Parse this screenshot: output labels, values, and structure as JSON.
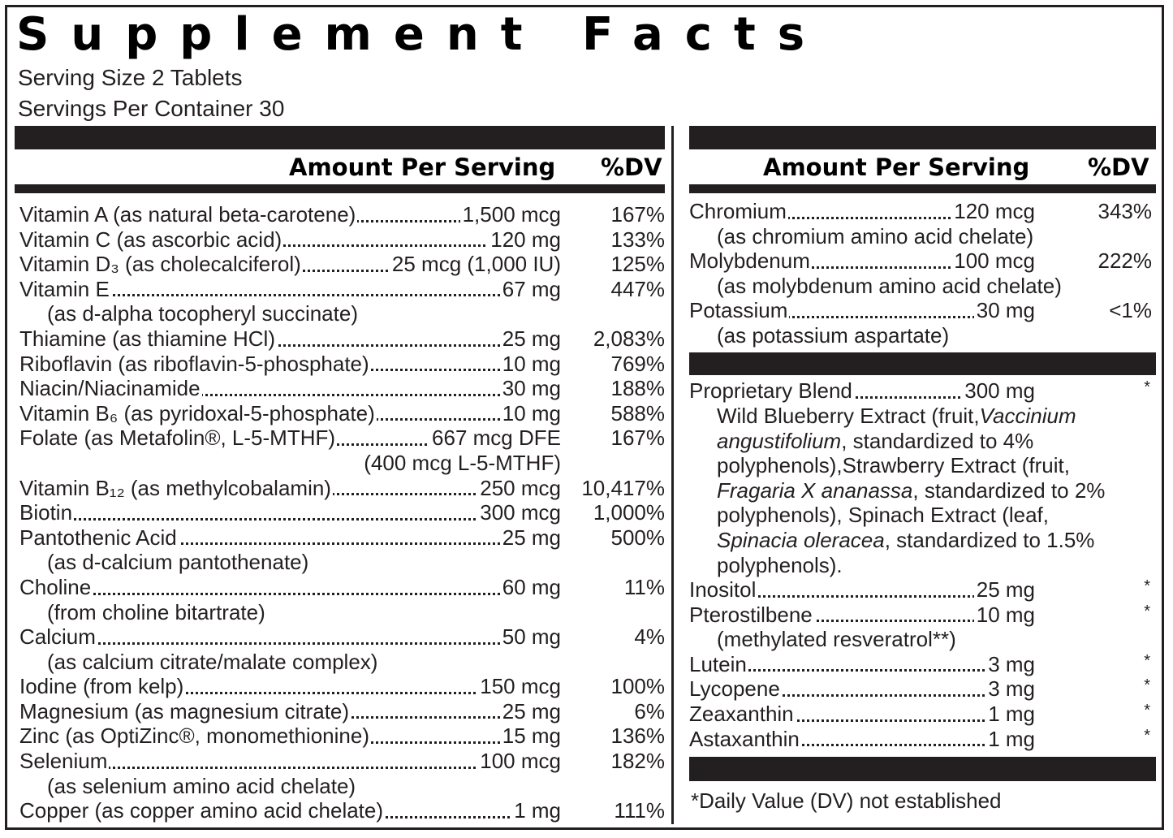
{
  "title": "Supplement Facts",
  "serving_size": "Serving Size 2 Tablets",
  "servings_per_container": "Servings Per Container 30",
  "header": {
    "amount_label": "Amount Per Serving",
    "dv_label": "%DV"
  },
  "left_rows": [
    {
      "name": "Vitamin A (as natural beta-carotene)",
      "amount": "1,500 mcg",
      "dv": "167%",
      "sub": ""
    },
    {
      "name": "Vitamin C (as ascorbic acid)",
      "amount": "120 mg",
      "dv": "133%",
      "sub": ""
    },
    {
      "name": "Vitamin D₃ (as cholecalciferol)",
      "amount": "25 mcg (1,000 IU)",
      "dv": "125%",
      "sub": ""
    },
    {
      "name": "Vitamin E",
      "amount": "67 mg",
      "dv": "447%",
      "sub": "(as d-alpha tocopheryl succinate)"
    },
    {
      "name": "Thiamine (as thiamine HCl)",
      "amount": "25 mg",
      "dv": "2,083%",
      "sub": ""
    },
    {
      "name": "Riboflavin (as riboflavin-5-phosphate)",
      "amount": "10 mg",
      "dv": "769%",
      "sub": ""
    },
    {
      "name": "Niacin/Niacinamide",
      "amount": "30 mg",
      "dv": "188%",
      "sub": ""
    },
    {
      "name": "Vitamin B₆ (as pyridoxal-5-phosphate)",
      "amount": "10 mg",
      "dv": "588%",
      "sub": ""
    },
    {
      "name": "Folate (as Metafolin®, L-5-MTHF)",
      "amount": "667 mcg DFE",
      "dv": "167%",
      "sub_right": "(400 mcg L-5-MTHF)"
    },
    {
      "name": "Vitamin B₁₂ (as methylcobalamin)",
      "amount": "250 mcg",
      "dv": "10,417%",
      "sub": ""
    },
    {
      "name": "Biotin",
      "amount": "300 mcg",
      "dv": "1,000%",
      "sub": ""
    },
    {
      "name": "Pantothenic Acid",
      "amount": "25 mg",
      "dv": "500%",
      "sub": "(as d-calcium pantothenate)"
    },
    {
      "name": "Choline",
      "amount": "60 mg",
      "dv": "11%",
      "sub": "(from choline bitartrate)"
    },
    {
      "name": "Calcium",
      "amount": "50 mg",
      "dv": "4%",
      "sub": "(as calcium citrate/malate complex)"
    },
    {
      "name": "Iodine (from kelp)",
      "amount": "150 mcg",
      "dv": "100%",
      "sub": ""
    },
    {
      "name": "Magnesium (as magnesium citrate)",
      "amount": "25 mg",
      "dv": "6%",
      "sub": ""
    },
    {
      "name": "Zinc (as OptiZinc®, monomethionine)",
      "amount": "15 mg",
      "dv": "136%",
      "sub": ""
    },
    {
      "name": "Selenium",
      "amount": "100 mcg",
      "dv": "182%",
      "sub": "(as selenium amino acid chelate)"
    },
    {
      "name": "Copper (as copper amino acid chelate)",
      "amount": "1 mg",
      "dv": "111%",
      "sub": ""
    }
  ],
  "right_top_rows": [
    {
      "name": "Chromium",
      "amount": "120 mcg",
      "dv": "343%",
      "sub": "(as chromium amino acid chelate)"
    },
    {
      "name": "Molybdenum",
      "amount": "100 mcg",
      "dv": "222%",
      "sub": "(as molybdenum amino acid chelate)"
    },
    {
      "name": "Potassium",
      "amount": "30 mg",
      "dv": "<1%",
      "sub": "(as potassium aspartate)"
    }
  ],
  "blend": {
    "name": "Proprietary Blend",
    "amount": "300 mg",
    "dv": "*",
    "lines": [
      [
        "Wild Blueberry Extract (fruit,",
        "Vaccinium"
      ],
      [
        "angustifolium",
        ", standardized to 4%"
      ],
      [
        "polyphenols),Strawberry Extract (fruit,",
        ""
      ],
      [
        "Fragaria X ananassa",
        ", standardized to 2%"
      ],
      [
        "polyphenols), Spinach Extract (leaf,",
        ""
      ],
      [
        "Spinacia oleracea",
        ", standardized to 1.5%"
      ],
      [
        "polyphenols).",
        ""
      ]
    ]
  },
  "right_bottom_rows": [
    {
      "name": "Inositol",
      "amount": "25 mg",
      "dv": "*",
      "sub": ""
    },
    {
      "name": "Pterostilbene",
      "amount": "10 mg",
      "dv": "*",
      "sub": "(methylated resveratrol**)"
    },
    {
      "name": "Lutein",
      "amount": "3 mg",
      "dv": "*",
      "sub": ""
    },
    {
      "name": "Lycopene",
      "amount": "3 mg",
      "dv": "*",
      "sub": ""
    },
    {
      "name": "Zeaxanthin",
      "amount": "1 mg",
      "dv": "*",
      "sub": ""
    },
    {
      "name": "Astaxanthin",
      "amount": "1 mg",
      "dv": "*",
      "sub": ""
    }
  ],
  "footnote": "*Daily Value (DV) not established"
}
